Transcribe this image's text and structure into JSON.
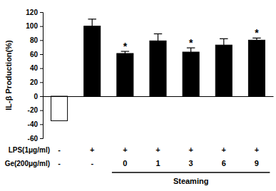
{
  "chart_data": {
    "type": "bar",
    "y_label": "IL-β Production(%)",
    "categories": [
      null,
      null,
      null,
      null,
      null,
      null,
      null
    ],
    "values": [
      -35,
      100,
      61,
      79,
      63,
      73,
      80
    ],
    "errors": [
      null,
      10,
      3,
      10,
      6,
      9,
      3
    ],
    "stars": [
      null,
      null,
      "*",
      null,
      "*",
      null,
      "*"
    ],
    "colors": [
      "#ffffff",
      "#000000",
      "#000000",
      "#000000",
      "#000000",
      "#000000",
      "#000000"
    ],
    "ylim": [
      -60,
      120
    ],
    "yticks": [
      -60,
      -40,
      -20,
      0,
      20,
      40,
      60,
      80,
      100,
      120
    ],
    "rows": [
      {
        "label": "LPS(1μg/ml)",
        "values": [
          "-",
          "+",
          "+",
          "+",
          "+",
          "+",
          "+"
        ]
      },
      {
        "label": "Ge(200μg/ml)",
        "values": [
          "-",
          "-",
          "0",
          "1",
          "3",
          "6",
          "9"
        ]
      }
    ],
    "group_label": "Steaming"
  }
}
